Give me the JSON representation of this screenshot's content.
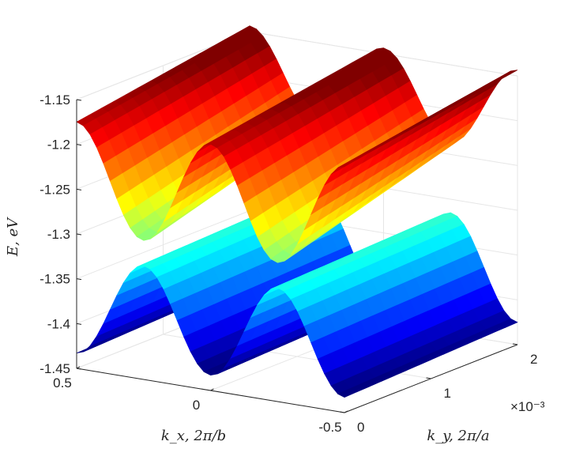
{
  "chart_data": {
    "type": "surface",
    "title": "",
    "xlabel": "k_x, 2π/b",
    "ylabel": "k_y, 2π/a",
    "zlabel": "E, eV",
    "xlim": [
      -0.5,
      0.5
    ],
    "ylim": [
      0,
      0.002
    ],
    "zlim": [
      -1.45,
      -1.15
    ],
    "x_ticks": [
      "0.5",
      "0",
      "-0.5"
    ],
    "y_ticks": [
      "0",
      "1",
      "2"
    ],
    "y_exponent": "×10⁻³",
    "z_ticks": [
      "-1.15",
      "-1.2",
      "-1.25",
      "-1.3",
      "-1.35",
      "-1.4",
      "-1.45"
    ],
    "grid": true,
    "colormap": "jet",
    "series": [
      {
        "band": "upper",
        "kx": [
          -0.5,
          -0.25,
          0,
          0.25,
          0.5
        ],
        "ky_at_min": 0,
        "ky_at_max": 0.002,
        "energy_range": [
          -1.3,
          -1.16
        ],
        "min_energy_kx": [
          -0.25,
          0.25
        ],
        "note_values": [
          -1.23,
          -1.3,
          -1.22,
          -1.29,
          -1.21
        ]
      },
      {
        "band": "lower",
        "kx": [
          -0.5,
          -0.25,
          0,
          0.25,
          0.5
        ],
        "ky_at_min": 0,
        "ky_at_max": 0.002,
        "energy_range": [
          -1.43,
          -1.3
        ],
        "max_energy_kx": [
          -0.25,
          0.25
        ],
        "note_values": [
          -1.4,
          -1.31,
          -1.41,
          -1.31,
          -1.42
        ]
      }
    ]
  }
}
